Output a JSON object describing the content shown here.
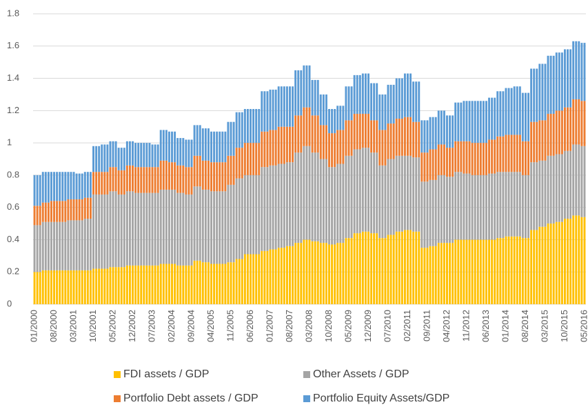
{
  "chart_data": {
    "type": "stacked_bar",
    "categories": [
      "01/2000",
      null,
      null,
      null,
      null,
      null,
      null,
      "08/2000",
      null,
      null,
      null,
      null,
      null,
      null,
      "03/2001",
      null,
      null,
      null,
      null,
      null,
      null,
      "10/2001",
      null,
      null,
      null,
      null,
      null,
      null,
      "05/2002",
      null,
      null,
      null,
      null,
      null,
      null,
      "12/2002",
      null,
      null,
      null,
      null,
      null,
      null,
      "07/2003",
      null,
      null,
      null,
      null,
      null,
      null,
      "02/2004",
      null,
      null,
      null,
      null,
      null,
      null,
      "09/2004",
      null,
      null,
      null,
      null,
      null,
      null,
      "04/2005",
      null,
      null,
      null,
      null,
      null,
      null,
      "11/2005",
      null,
      null,
      null,
      null,
      null,
      null,
      "06/2006",
      null,
      null,
      null,
      null,
      null,
      null,
      "01/2007",
      null,
      null,
      null,
      null,
      null,
      null,
      "08/2007",
      null,
      null,
      null,
      null,
      null,
      null,
      "03/2008",
      null,
      null,
      null,
      null,
      null,
      null,
      "10/2008",
      null,
      null,
      null,
      null,
      null,
      null,
      "05/2009",
      null,
      null,
      null,
      null,
      null,
      null,
      "12/2009",
      null,
      null,
      null,
      null,
      null,
      null,
      "07/2010",
      null,
      null,
      null,
      null,
      null,
      null,
      "02/2011",
      null,
      null,
      null,
      null,
      null,
      null,
      "09/2011",
      null,
      null,
      null,
      null,
      null,
      null,
      "04/2012",
      null,
      null,
      null,
      null,
      null,
      null,
      "11/2012",
      null,
      null,
      null,
      null,
      null,
      null,
      "06/2013",
      null,
      null,
      null,
      null,
      null,
      null,
      "01/2014",
      null,
      null,
      null,
      null,
      null,
      null,
      "08/2014",
      null,
      null,
      null,
      null,
      null,
      null,
      "03/2015",
      null,
      null,
      null,
      null,
      null,
      null,
      "10/2015",
      null,
      null,
      null,
      null,
      null,
      null,
      "05/2016"
    ],
    "series": [
      {
        "name": "FDI assets / GDP",
        "color": "#FFC000",
        "values": [
          0.2,
          0.2,
          0.2,
          0.21,
          0.21,
          0.21,
          0.21,
          0.21,
          0.21,
          0.21,
          0.21,
          0.21,
          0.21,
          0.21,
          0.21,
          0.21,
          0.21,
          0.21,
          0.21,
          0.21,
          0.21,
          0.22,
          0.22,
          0.22,
          0.22,
          0.22,
          0.22,
          0.23,
          0.23,
          0.23,
          0.23,
          0.23,
          0.23,
          0.24,
          0.24,
          0.24,
          0.24,
          0.24,
          0.24,
          0.24,
          0.24,
          0.24,
          0.24,
          0.24,
          0.24,
          0.25,
          0.25,
          0.25,
          0.25,
          0.25,
          0.25,
          0.24,
          0.24,
          0.24,
          0.24,
          0.24,
          0.24,
          0.27,
          0.27,
          0.27,
          0.26,
          0.26,
          0.26,
          0.25,
          0.25,
          0.25,
          0.25,
          0.25,
          0.25,
          0.26,
          0.26,
          0.26,
          0.28,
          0.28,
          0.28,
          0.31,
          0.31,
          0.31,
          0.31,
          0.31,
          0.31,
          0.33,
          0.33,
          0.33,
          0.34,
          0.34,
          0.34,
          0.35,
          0.35,
          0.35,
          0.36,
          0.36,
          0.36,
          0.38,
          0.38,
          0.38,
          0.4,
          0.4,
          0.4,
          0.39,
          0.39,
          0.39,
          0.38,
          0.38,
          0.38,
          0.37,
          0.37,
          0.37,
          0.38,
          0.38,
          0.38,
          0.41,
          0.41,
          0.41,
          0.44,
          0.44,
          0.44,
          0.45,
          0.45,
          0.45,
          0.44,
          0.44,
          0.44,
          0.41,
          0.41,
          0.41,
          0.43,
          0.43,
          0.43,
          0.45,
          0.45,
          0.45,
          0.46,
          0.46,
          0.46,
          0.45,
          0.45,
          0.45,
          0.35,
          0.35,
          0.35,
          0.36,
          0.36,
          0.36,
          0.38,
          0.38,
          0.38,
          0.38,
          0.38,
          0.38,
          0.4,
          0.4,
          0.4,
          0.4,
          0.4,
          0.4,
          0.4,
          0.4,
          0.4,
          0.4,
          0.4,
          0.4,
          0.4,
          0.4,
          0.4,
          0.41,
          0.41,
          0.41,
          0.42,
          0.42,
          0.42,
          0.42,
          0.42,
          0.42,
          0.41,
          0.41,
          0.41,
          0.46,
          0.46,
          0.46,
          0.48,
          0.48,
          0.48,
          0.5,
          0.5,
          0.5,
          0.51,
          0.51,
          0.51,
          0.53,
          0.53,
          0.53,
          0.55,
          0.55,
          0.55,
          0.54,
          0.54
        ]
      },
      {
        "name": "Other Assets / GDP",
        "color": "#A5A5A5",
        "values": [
          0.29,
          0.29,
          0.29,
          0.3,
          0.3,
          0.3,
          0.3,
          0.3,
          0.3,
          0.3,
          0.3,
          0.3,
          0.31,
          0.31,
          0.31,
          0.31,
          0.31,
          0.31,
          0.32,
          0.32,
          0.32,
          0.46,
          0.46,
          0.46,
          0.46,
          0.46,
          0.46,
          0.47,
          0.47,
          0.47,
          0.45,
          0.45,
          0.45,
          0.46,
          0.46,
          0.46,
          0.45,
          0.45,
          0.45,
          0.45,
          0.45,
          0.45,
          0.45,
          0.45,
          0.45,
          0.46,
          0.46,
          0.46,
          0.46,
          0.46,
          0.46,
          0.45,
          0.45,
          0.45,
          0.44,
          0.44,
          0.44,
          0.46,
          0.46,
          0.46,
          0.45,
          0.45,
          0.45,
          0.45,
          0.45,
          0.45,
          0.45,
          0.45,
          0.45,
          0.48,
          0.48,
          0.48,
          0.5,
          0.5,
          0.5,
          0.49,
          0.49,
          0.49,
          0.49,
          0.49,
          0.49,
          0.52,
          0.52,
          0.52,
          0.52,
          0.52,
          0.52,
          0.52,
          0.52,
          0.52,
          0.52,
          0.52,
          0.52,
          0.56,
          0.56,
          0.56,
          0.58,
          0.58,
          0.58,
          0.55,
          0.55,
          0.55,
          0.52,
          0.52,
          0.52,
          0.48,
          0.48,
          0.48,
          0.49,
          0.49,
          0.49,
          0.51,
          0.51,
          0.51,
          0.52,
          0.52,
          0.52,
          0.52,
          0.52,
          0.52,
          0.5,
          0.5,
          0.5,
          0.45,
          0.45,
          0.45,
          0.47,
          0.47,
          0.47,
          0.47,
          0.47,
          0.47,
          0.46,
          0.46,
          0.46,
          0.46,
          0.46,
          0.46,
          0.41,
          0.41,
          0.41,
          0.41,
          0.41,
          0.41,
          0.42,
          0.42,
          0.42,
          0.41,
          0.41,
          0.41,
          0.42,
          0.42,
          0.42,
          0.41,
          0.41,
          0.41,
          0.4,
          0.4,
          0.4,
          0.4,
          0.4,
          0.4,
          0.41,
          0.41,
          0.41,
          0.41,
          0.41,
          0.41,
          0.4,
          0.4,
          0.4,
          0.4,
          0.4,
          0.4,
          0.39,
          0.39,
          0.39,
          0.42,
          0.42,
          0.42,
          0.41,
          0.41,
          0.41,
          0.42,
          0.42,
          0.42,
          0.42,
          0.42,
          0.42,
          0.42,
          0.42,
          0.42,
          0.44,
          0.44,
          0.44,
          0.44,
          0.44
        ]
      },
      {
        "name": "Portfolio Debt assets / GDP",
        "color": "#ED7D31",
        "values": [
          0.12,
          0.12,
          0.12,
          0.12,
          0.12,
          0.12,
          0.13,
          0.13,
          0.13,
          0.13,
          0.13,
          0.13,
          0.13,
          0.13,
          0.13,
          0.13,
          0.13,
          0.13,
          0.13,
          0.13,
          0.13,
          0.14,
          0.14,
          0.14,
          0.14,
          0.14,
          0.14,
          0.15,
          0.15,
          0.15,
          0.15,
          0.15,
          0.15,
          0.16,
          0.16,
          0.16,
          0.16,
          0.16,
          0.16,
          0.16,
          0.16,
          0.16,
          0.16,
          0.16,
          0.16,
          0.18,
          0.18,
          0.18,
          0.17,
          0.17,
          0.17,
          0.17,
          0.17,
          0.17,
          0.17,
          0.17,
          0.17,
          0.19,
          0.19,
          0.19,
          0.18,
          0.18,
          0.18,
          0.18,
          0.18,
          0.18,
          0.18,
          0.18,
          0.18,
          0.18,
          0.18,
          0.18,
          0.19,
          0.19,
          0.19,
          0.2,
          0.2,
          0.2,
          0.2,
          0.2,
          0.2,
          0.22,
          0.22,
          0.22,
          0.22,
          0.22,
          0.22,
          0.23,
          0.23,
          0.23,
          0.22,
          0.22,
          0.22,
          0.23,
          0.23,
          0.23,
          0.24,
          0.24,
          0.24,
          0.23,
          0.23,
          0.23,
          0.21,
          0.21,
          0.21,
          0.21,
          0.21,
          0.21,
          0.21,
          0.21,
          0.21,
          0.22,
          0.22,
          0.22,
          0.22,
          0.22,
          0.22,
          0.21,
          0.21,
          0.21,
          0.2,
          0.2,
          0.2,
          0.22,
          0.22,
          0.22,
          0.22,
          0.22,
          0.22,
          0.23,
          0.23,
          0.23,
          0.24,
          0.24,
          0.24,
          0.22,
          0.22,
          0.22,
          0.18,
          0.18,
          0.18,
          0.19,
          0.19,
          0.19,
          0.19,
          0.19,
          0.19,
          0.18,
          0.18,
          0.18,
          0.19,
          0.19,
          0.19,
          0.2,
          0.2,
          0.2,
          0.2,
          0.2,
          0.2,
          0.2,
          0.2,
          0.2,
          0.21,
          0.21,
          0.21,
          0.22,
          0.22,
          0.22,
          0.23,
          0.23,
          0.23,
          0.23,
          0.23,
          0.23,
          0.21,
          0.21,
          0.21,
          0.25,
          0.25,
          0.25,
          0.25,
          0.25,
          0.25,
          0.26,
          0.26,
          0.26,
          0.27,
          0.27,
          0.27,
          0.27,
          0.27,
          0.27,
          0.28,
          0.28,
          0.28,
          0.28,
          0.28
        ]
      },
      {
        "name": "Portfolio Equity Assets/GDP",
        "color": "#5B9BD5",
        "values": [
          0.19,
          0.19,
          0.19,
          0.19,
          0.19,
          0.19,
          0.18,
          0.18,
          0.18,
          0.18,
          0.18,
          0.18,
          0.17,
          0.17,
          0.17,
          0.16,
          0.16,
          0.16,
          0.16,
          0.16,
          0.16,
          0.16,
          0.16,
          0.16,
          0.17,
          0.17,
          0.17,
          0.16,
          0.16,
          0.16,
          0.14,
          0.14,
          0.14,
          0.15,
          0.15,
          0.15,
          0.15,
          0.15,
          0.15,
          0.15,
          0.15,
          0.15,
          0.14,
          0.14,
          0.14,
          0.19,
          0.19,
          0.19,
          0.19,
          0.19,
          0.19,
          0.17,
          0.17,
          0.17,
          0.17,
          0.17,
          0.17,
          0.19,
          0.19,
          0.19,
          0.2,
          0.2,
          0.2,
          0.19,
          0.19,
          0.19,
          0.19,
          0.19,
          0.19,
          0.21,
          0.21,
          0.21,
          0.22,
          0.22,
          0.22,
          0.21,
          0.21,
          0.21,
          0.21,
          0.21,
          0.21,
          0.25,
          0.25,
          0.25,
          0.25,
          0.25,
          0.25,
          0.25,
          0.25,
          0.25,
          0.25,
          0.25,
          0.25,
          0.28,
          0.28,
          0.28,
          0.26,
          0.26,
          0.26,
          0.22,
          0.22,
          0.22,
          0.19,
          0.19,
          0.19,
          0.15,
          0.15,
          0.15,
          0.15,
          0.15,
          0.15,
          0.21,
          0.21,
          0.21,
          0.24,
          0.24,
          0.24,
          0.25,
          0.25,
          0.25,
          0.23,
          0.23,
          0.23,
          0.22,
          0.22,
          0.22,
          0.24,
          0.24,
          0.24,
          0.25,
          0.25,
          0.25,
          0.27,
          0.27,
          0.27,
          0.25,
          0.25,
          0.25,
          0.2,
          0.2,
          0.2,
          0.2,
          0.2,
          0.2,
          0.21,
          0.21,
          0.21,
          0.2,
          0.2,
          0.2,
          0.24,
          0.24,
          0.24,
          0.25,
          0.25,
          0.25,
          0.26,
          0.26,
          0.26,
          0.26,
          0.26,
          0.26,
          0.26,
          0.26,
          0.26,
          0.28,
          0.28,
          0.28,
          0.29,
          0.29,
          0.29,
          0.3,
          0.3,
          0.3,
          0.3,
          0.3,
          0.3,
          0.33,
          0.33,
          0.33,
          0.35,
          0.35,
          0.35,
          0.36,
          0.36,
          0.36,
          0.36,
          0.36,
          0.36,
          0.36,
          0.36,
          0.36,
          0.36,
          0.36,
          0.36,
          0.36,
          0.36
        ]
      }
    ],
    "ylim": [
      0,
      1.8
    ],
    "yticks": [
      0,
      0.2,
      0.4,
      0.6,
      0.8,
      1,
      1.2,
      1.4,
      1.6,
      1.8
    ],
    "grid": true,
    "legend": "bottom"
  }
}
